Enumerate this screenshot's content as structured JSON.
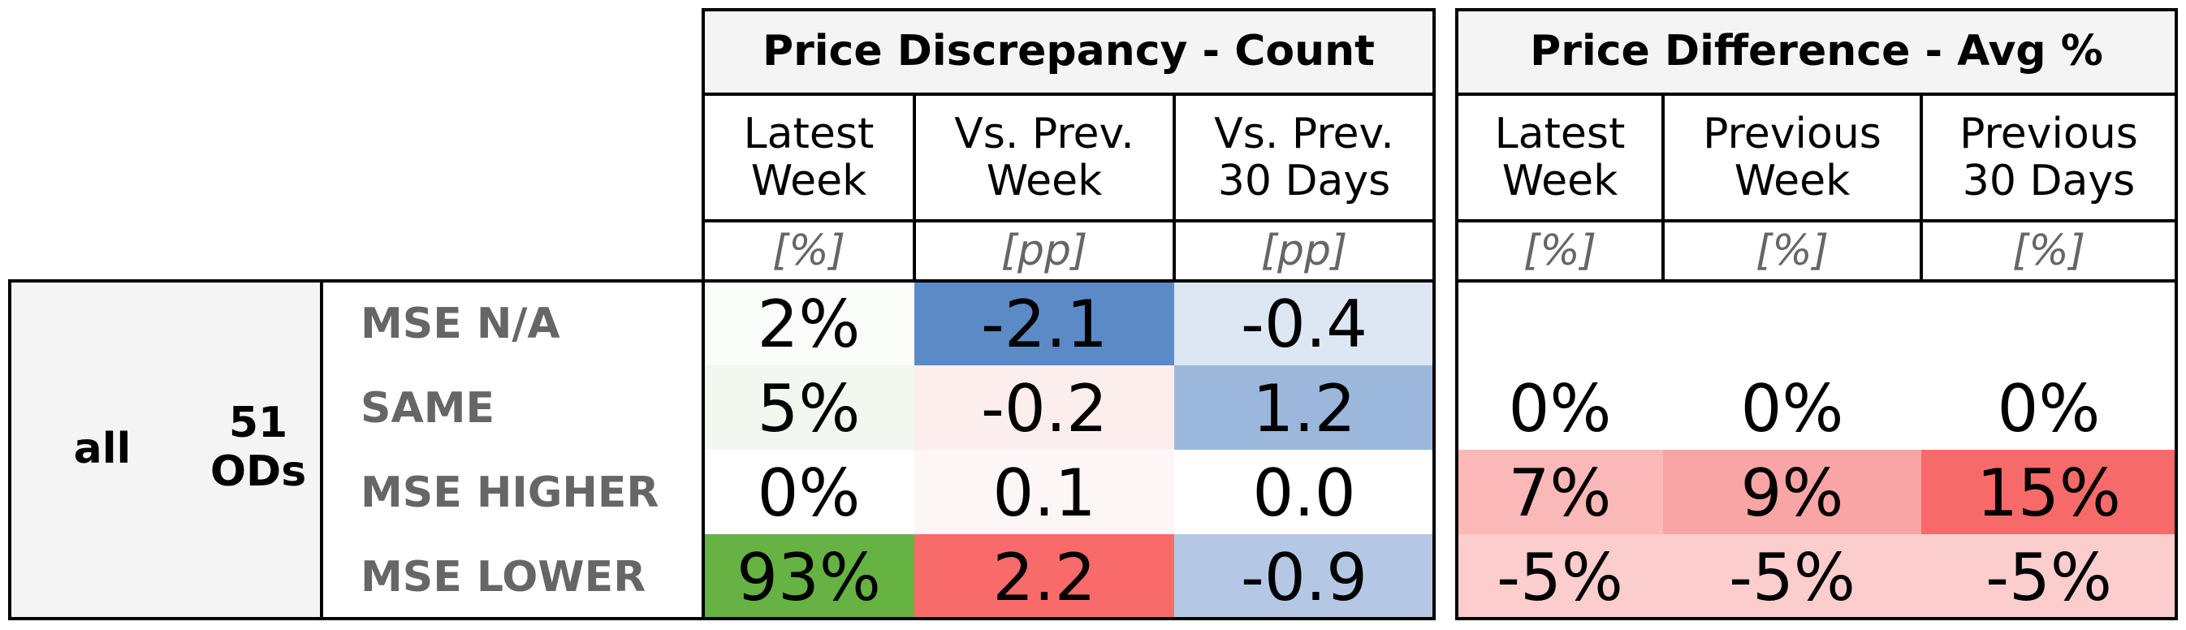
{
  "chart_data": {
    "type": "table",
    "group": {
      "name": "all",
      "count_line1": "51",
      "count_line2": "ODs"
    },
    "rows": [
      "MSE N/A",
      "SAME",
      "MSE HIGHER",
      "MSE LOWER"
    ],
    "sections": [
      {
        "title": "Price Discrepancy - Count",
        "columns": [
          {
            "line1": "Latest",
            "line2": "Week",
            "unit": "[%]"
          },
          {
            "line1": "Vs. Prev.",
            "line2": "Week",
            "unit": "[pp]"
          },
          {
            "line1": "Vs. Prev.",
            "line2": "30 Days",
            "unit": "[pp]"
          }
        ],
        "values": [
          [
            "2%",
            "-2.1",
            "-0.4"
          ],
          [
            "5%",
            "-0.2",
            "1.2"
          ],
          [
            "0%",
            "0.1",
            "0.0"
          ],
          [
            "93%",
            "2.2",
            "-0.9"
          ]
        ],
        "colors": [
          [
            "#fafcf9",
            "#5c8ac6",
            "#dde7f3"
          ],
          [
            "#f2f7f0",
            "#fdeeee",
            "#9cb7dc"
          ],
          [
            "#ffffff",
            "#fdf6f6",
            "#ffffff"
          ],
          [
            "#66b243",
            "#f96b6b",
            "#b4c8e5"
          ]
        ]
      },
      {
        "title": "Price Difference - Avg %",
        "columns": [
          {
            "line1": "Latest",
            "line2": "Week",
            "unit": "[%]"
          },
          {
            "line1": "Previous",
            "line2": "Week",
            "unit": "[%]"
          },
          {
            "line1": "Previous",
            "line2": "30 Days",
            "unit": "[%]"
          }
        ],
        "values": [
          [
            "",
            "",
            ""
          ],
          [
            "0%",
            "0%",
            "0%"
          ],
          [
            "7%",
            "9%",
            "15%"
          ],
          [
            "-5%",
            "-5%",
            "-5%"
          ]
        ],
        "colors": [
          [
            "#ffffff",
            "#ffffff",
            "#ffffff"
          ],
          [
            "#ffffff",
            "#ffffff",
            "#ffffff"
          ],
          [
            "#fbb8b8",
            "#f9a5a5",
            "#f76a6a"
          ],
          [
            "#fbcdcd",
            "#fbcdcd",
            "#fbcdcd"
          ]
        ]
      }
    ]
  }
}
